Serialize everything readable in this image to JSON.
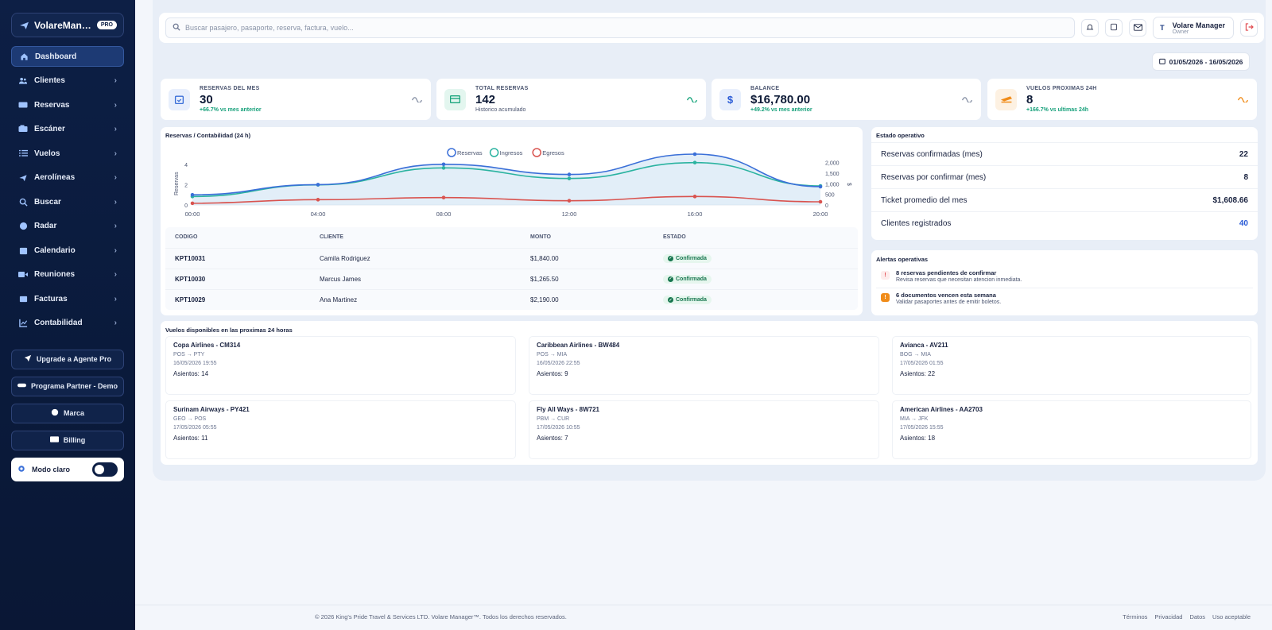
{
  "brand": {
    "name": "VolareManager",
    "badge": "PRO"
  },
  "sidebar": {
    "items": [
      {
        "label": "Dashboard",
        "icon": "home-icon",
        "active": true
      },
      {
        "label": "Clientes",
        "icon": "users-icon"
      },
      {
        "label": "Reservas",
        "icon": "ticket-icon"
      },
      {
        "label": "Escáner",
        "icon": "scanner-icon"
      },
      {
        "label": "Vuelos",
        "icon": "list-icon"
      },
      {
        "label": "Aerolíneas",
        "icon": "airplane-icon"
      },
      {
        "label": "Buscar",
        "icon": "search-icon"
      },
      {
        "label": "Radar",
        "icon": "globe-icon"
      },
      {
        "label": "Calendario",
        "icon": "calendar-icon"
      },
      {
        "label": "Reuniones",
        "icon": "video-icon"
      },
      {
        "label": "Facturas",
        "icon": "invoice-icon"
      },
      {
        "label": "Contabilidad",
        "icon": "chart-icon"
      }
    ],
    "upgrade": "Upgrade a Agente Pro",
    "partner": "Programa Partner - Demo",
    "brand_btn": "Marca",
    "billing": "Billing",
    "mode_label": "Modo claro"
  },
  "topbar": {
    "search_placeholder": "Buscar pasajero, pasaporte, reserva, factura, vuelo...",
    "user_initial": "T",
    "user_name": "Volare Manager",
    "user_role": "Owner"
  },
  "date_range": "01/05/2026 - 16/05/2026",
  "kpis": [
    {
      "label": "RESERVAS DEL MES",
      "value": "30",
      "sub": "+66.7% vs mes anterior",
      "color": "#3a6fd8",
      "bg": "#e8effc"
    },
    {
      "label": "TOTAL RESERVAS",
      "value": "142",
      "sub": "Historico acumulado",
      "color": "#18a57c",
      "bg": "#e3f6ef"
    },
    {
      "label": "BALANCE",
      "value": "$16,780.00",
      "sub": "+49.2% vs mes anterior",
      "color": "#2a5bd6",
      "bg": "#e8effc"
    },
    {
      "label": "VUELOS PROXIMAS 24H",
      "value": "8",
      "sub": "+166.7% vs ultimas 24h",
      "color": "#f08c1a",
      "bg": "#fdf1e2"
    }
  ],
  "chart_panel": {
    "title": "Reservas / Contabilidad (24 h)"
  },
  "chart_data": {
    "type": "line",
    "title": "Reservas / Contabilidad (24 h)",
    "x": [
      "00:00",
      "04:00",
      "08:00",
      "12:00",
      "16:00",
      "20:00"
    ],
    "ylabel": "Reservas",
    "y2label": "$",
    "ylim": [
      0,
      5
    ],
    "y_ticks": [
      "0",
      "2",
      "4"
    ],
    "y2lim": [
      0,
      2400
    ],
    "y2_ticks": [
      "0",
      "500",
      "1,000",
      "1,500",
      "2,000"
    ],
    "series": [
      {
        "name": "Reservas",
        "axis": "left",
        "color": "#3a6fd8",
        "values": [
          1,
          2,
          4,
          3,
          5,
          1.8
        ]
      },
      {
        "name": "Ingresos",
        "axis": "right",
        "color": "#2bb3a0",
        "values": [
          400,
          950,
          1750,
          1250,
          2000,
          900
        ]
      },
      {
        "name": "Egresos",
        "axis": "right",
        "color": "#d9534f",
        "values": [
          80,
          250,
          350,
          200,
          400,
          150
        ]
      }
    ],
    "legend": "top"
  },
  "table": {
    "headers": [
      "CODIGO",
      "CLIENTE",
      "MONTO",
      "ESTADO"
    ],
    "rows": [
      {
        "code": "KPT10031",
        "client": "Camila Rodriguez",
        "amount": "$1,840.00",
        "status": "Confirmada"
      },
      {
        "code": "KPT10030",
        "client": "Marcus James",
        "amount": "$1,265.50",
        "status": "Confirmada"
      },
      {
        "code": "KPT10029",
        "client": "Ana Martinez",
        "amount": "$2,190.00",
        "status": "Confirmada"
      }
    ]
  },
  "estado": {
    "title": "Estado operativo",
    "rows": [
      {
        "label": "Reservas confirmadas (mes)",
        "value": "22"
      },
      {
        "label": "Reservas por confirmar (mes)",
        "value": "8"
      },
      {
        "label": "Ticket promedio del mes",
        "value": "$1,608.66"
      },
      {
        "label": "Clientes registrados",
        "value": "40"
      }
    ]
  },
  "alertas": {
    "title": "Alertas operativas",
    "items": [
      {
        "title": "8 reservas pendientes de confirmar",
        "desc": "Revisa reservas que necesitan atencion inmediata.",
        "icon": "!",
        "color": "#e0474c"
      },
      {
        "title": "6 documentos vencen esta semana",
        "desc": "Validar pasaportes antes de emitir boletos.",
        "icon": "!",
        "color": "#f08c1a"
      }
    ]
  },
  "flights": {
    "title": "Vuelos disponibles en las proximas 24 horas",
    "items": [
      {
        "name": "Copa Airlines - CM314",
        "route": "POS → PTY",
        "date": "16/05/2026 19:55",
        "seats": "Asientos: 14"
      },
      {
        "name": "Caribbean Airlines - BW484",
        "route": "POS → MIA",
        "date": "16/05/2026 22:55",
        "seats": "Asientos: 9"
      },
      {
        "name": "Avianca - AV211",
        "route": "BOG → MIA",
        "date": "17/05/2026 01:55",
        "seats": "Asientos: 22"
      },
      {
        "name": "Surinam Airways - PY421",
        "route": "GEO → POS",
        "date": "17/05/2026 05:55",
        "seats": "Asientos: 11"
      },
      {
        "name": "Fly All Ways - 8W721",
        "route": "PBM → CUR",
        "date": "17/05/2026 10:55",
        "seats": "Asientos: 7"
      },
      {
        "name": "American Airlines - AA2703",
        "route": "MIA → JFK",
        "date": "17/05/2026 15:55",
        "seats": "Asientos: 18"
      }
    ]
  },
  "footer": {
    "copyright": "© 2026 King's Pride Travel & Services LTD. Volare Manager™. Todos los derechos reservados.",
    "links": [
      "Términos",
      "Privacidad",
      "Datos",
      "Uso aceptable"
    ]
  }
}
